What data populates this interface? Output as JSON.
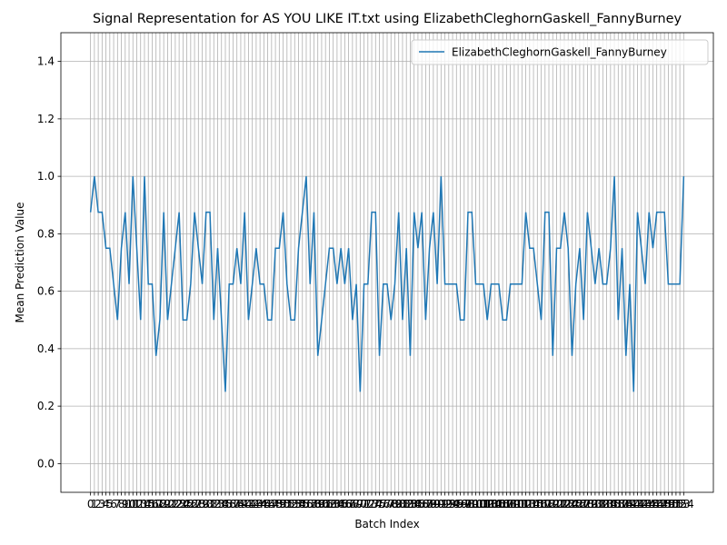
{
  "chart_data": {
    "type": "line",
    "title": "Signal Representation for AS YOU LIKE IT.txt using ElizabethCleghornGaskell_FannyBurney",
    "x_label": "Batch Index",
    "y_label": "Mean Prediction Value",
    "x": [
      0,
      1,
      2,
      3,
      4,
      5,
      6,
      7,
      8,
      9,
      10,
      11,
      12,
      13,
      14,
      15,
      16,
      17,
      18,
      19,
      20,
      21,
      22,
      23,
      24,
      25,
      26,
      27,
      28,
      29,
      30,
      31,
      32,
      33,
      34,
      35,
      36,
      37,
      38,
      39,
      40,
      41,
      42,
      43,
      44,
      45,
      46,
      47,
      48,
      49,
      50,
      51,
      52,
      53,
      54,
      55,
      56,
      57,
      58,
      59,
      60,
      61,
      62,
      63,
      64,
      65,
      66,
      67,
      68,
      69,
      70,
      71,
      72,
      73,
      74,
      75,
      76,
      77,
      78,
      79,
      80,
      81,
      82,
      83,
      84,
      85,
      86,
      87,
      88,
      89,
      90,
      91,
      92,
      93,
      94,
      95,
      96,
      97,
      98,
      99,
      100,
      101,
      102,
      103,
      104,
      105,
      106,
      107,
      108,
      109,
      110,
      111,
      112,
      113,
      114,
      115,
      116,
      117,
      118,
      119,
      120,
      121,
      122,
      123,
      124,
      125,
      126,
      127,
      128,
      129,
      130,
      131,
      132,
      133,
      134,
      135,
      136,
      137,
      138,
      139,
      140,
      141,
      142,
      143,
      144,
      145,
      146,
      147,
      148,
      149,
      150,
      151,
      152,
      153,
      154
    ],
    "series": [
      {
        "name": "ElizabethCleghornGaskell_FannyBurney",
        "color": "#1f77b4",
        "values": [
          0.875,
          1,
          0.875,
          0.875,
          0.75,
          0.75,
          0.625,
          0.5,
          0.75,
          0.875,
          0.625,
          1,
          0.75,
          0.5,
          1,
          0.625,
          0.625,
          0.375,
          0.5,
          0.875,
          0.5,
          0.625,
          0.75,
          0.875,
          0.5,
          0.5,
          0.625,
          0.875,
          0.75,
          0.625,
          0.875,
          0.875,
          0.5,
          0.75,
          0.5,
          0.25,
          0.625,
          0.625,
          0.75,
          0.625,
          0.875,
          0.5,
          0.625,
          0.75,
          0.625,
          0.625,
          0.5,
          0.5,
          0.75,
          0.75,
          0.875,
          0.625,
          0.5,
          0.5,
          0.75,
          0.875,
          1,
          0.625,
          0.875,
          0.375,
          0.5,
          0.625,
          0.75,
          0.75,
          0.625,
          0.75,
          0.625,
          0.75,
          0.5,
          0.625,
          0.25,
          0.625,
          0.625,
          0.875,
          0.875,
          0.375,
          0.625,
          0.625,
          0.5,
          0.625,
          0.875,
          0.5,
          0.75,
          0.375,
          0.875,
          0.75,
          0.875,
          0.5,
          0.75,
          0.875,
          0.625,
          1,
          0.625,
          0.625,
          0.625,
          0.625,
          0.5,
          0.5,
          0.875,
          0.875,
          0.625,
          0.625,
          0.625,
          0.5,
          0.625,
          0.625,
          0.625,
          0.5,
          0.5,
          0.625,
          0.625,
          0.625,
          0.625,
          0.875,
          0.75,
          0.75,
          0.625,
          0.5,
          0.875,
          0.875,
          0.375,
          0.75,
          0.75,
          0.875,
          0.75,
          0.375,
          0.625,
          0.75,
          0.5,
          0.875,
          0.75,
          0.625,
          0.75,
          0.625,
          0.625,
          0.75,
          1,
          0.5,
          0.75,
          0.375,
          0.625,
          0.25,
          0.875,
          0.75,
          0.625,
          0.875,
          0.75,
          0.875,
          0.875,
          0.875,
          0.625,
          0.625,
          0.625,
          0.625,
          1
        ]
      }
    ],
    "xlim": [
      -7.7,
      161.7
    ],
    "xticks": [
      0,
      1,
      2,
      3,
      4,
      5,
      6,
      7,
      8,
      9,
      10,
      11,
      12,
      13,
      14,
      15,
      16,
      17,
      18,
      19,
      20,
      21,
      22,
      23,
      24,
      25,
      26,
      27,
      28,
      29,
      30,
      31,
      32,
      33,
      34,
      35,
      36,
      37,
      38,
      39,
      40,
      41,
      42,
      43,
      44,
      45,
      46,
      47,
      48,
      49,
      50,
      51,
      52,
      53,
      54,
      55,
      56,
      57,
      58,
      59,
      60,
      61,
      62,
      63,
      64,
      65,
      66,
      67,
      68,
      69,
      70,
      71,
      72,
      73,
      74,
      75,
      76,
      77,
      78,
      79,
      80,
      81,
      82,
      83,
      84,
      85,
      86,
      87,
      88,
      89,
      90,
      91,
      92,
      93,
      94,
      95,
      96,
      97,
      98,
      99,
      100,
      101,
      102,
      103,
      104,
      105,
      106,
      107,
      108,
      109,
      110,
      111,
      112,
      113,
      114,
      115,
      116,
      117,
      118,
      119,
      120,
      121,
      122,
      123,
      124,
      125,
      126,
      127,
      128,
      129,
      130,
      131,
      132,
      133,
      134,
      135,
      136,
      137,
      138,
      139,
      140,
      141,
      142,
      143,
      144,
      145,
      146,
      147,
      148,
      149,
      150,
      151,
      152,
      153,
      154
    ],
    "ylim": [
      -0.1,
      1.5
    ],
    "yticks": [
      {
        "value": 0,
        "label": "0.0"
      },
      0.2,
      0.4,
      0.6,
      0.8,
      {
        "value": 1,
        "label": "1.0"
      },
      1.2,
      1.4
    ],
    "grid": true,
    "legend": "upper right"
  }
}
